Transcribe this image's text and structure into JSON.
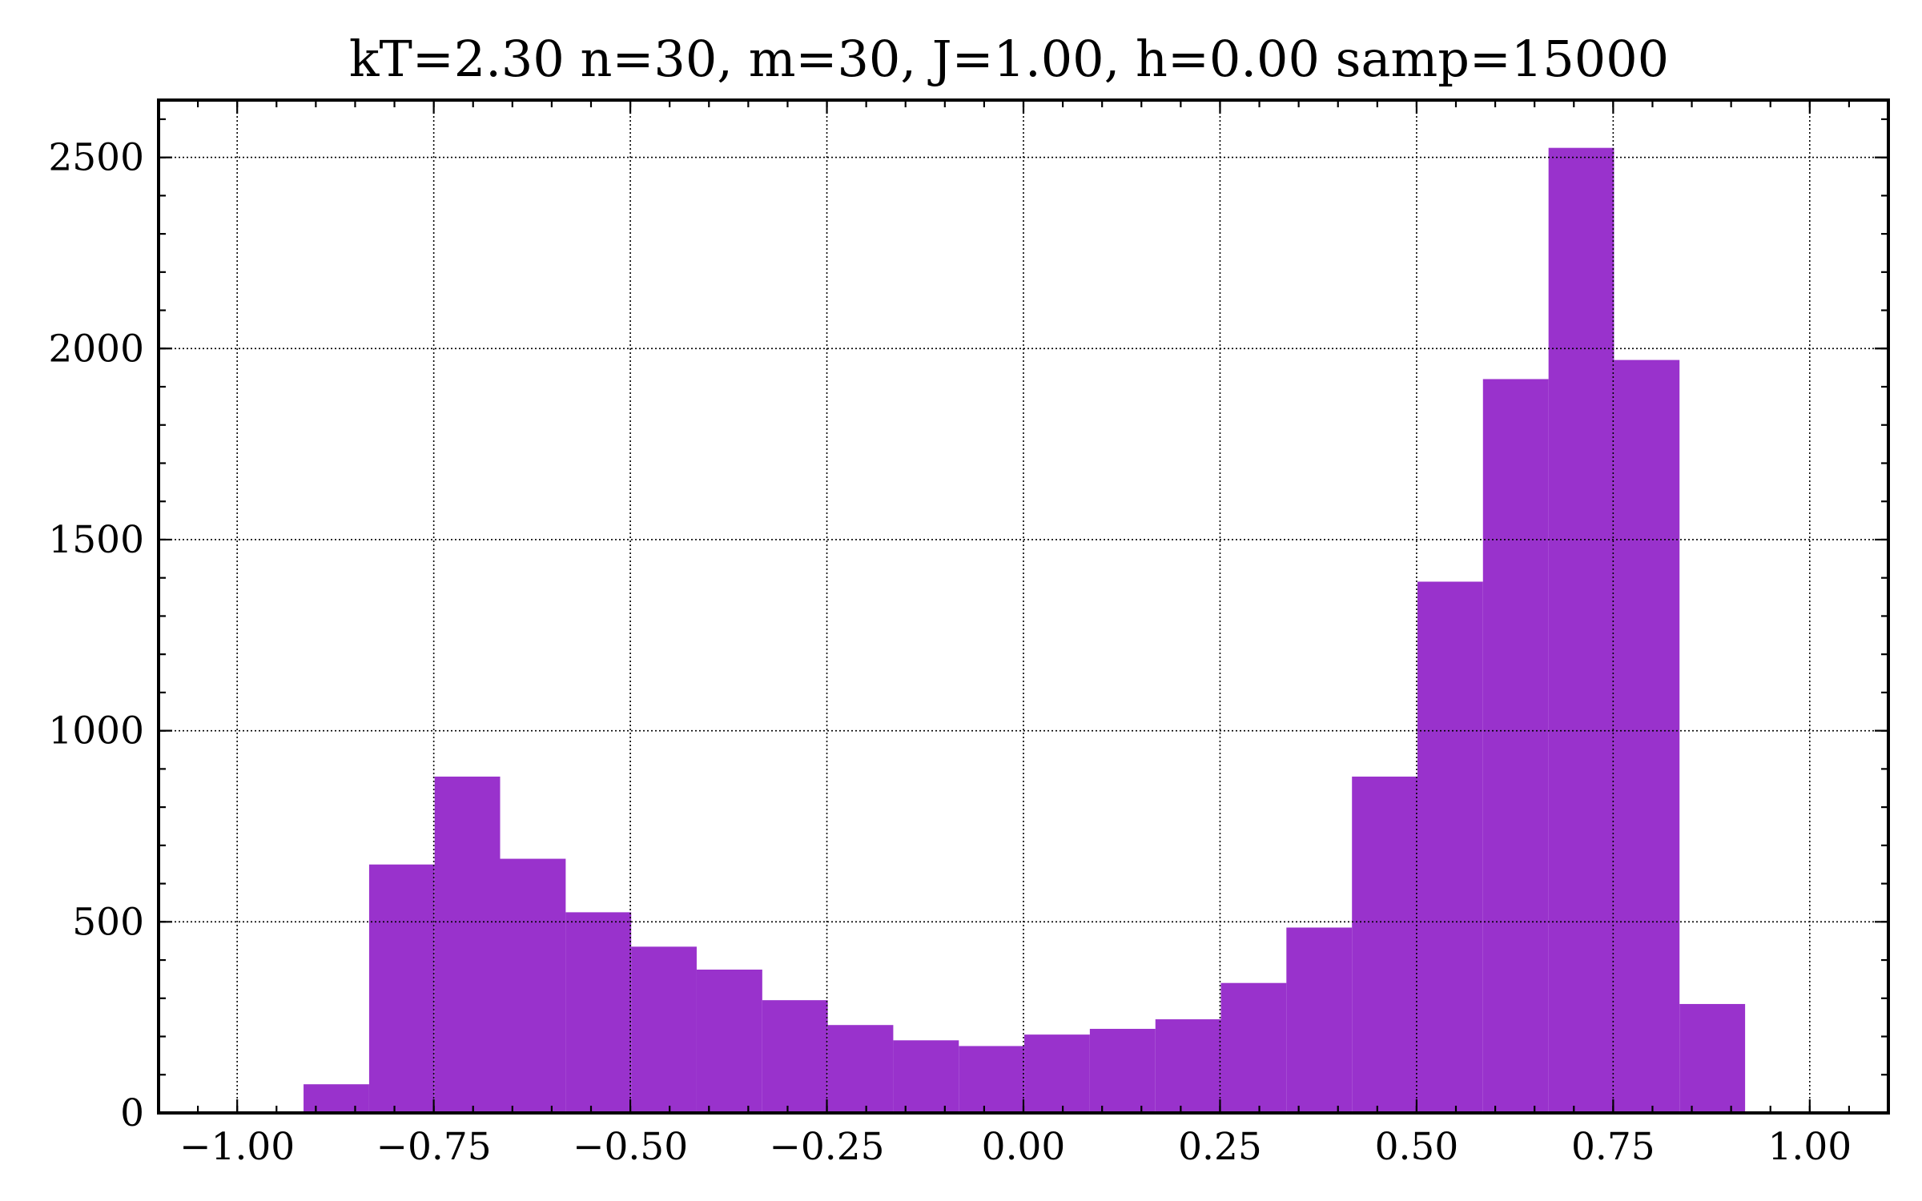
{
  "chart_data": {
    "type": "bar",
    "title": "kT=2.30 n=30, m=30, J=1.00, h=0.00 samp=15000",
    "xlabel": "",
    "ylabel": "",
    "xlim": [
      -1.1,
      1.1
    ],
    "ylim": [
      0,
      2650
    ],
    "grid": true,
    "bar_color": "#9932CC",
    "x_ticks": [
      -1.0,
      -0.75,
      -0.5,
      -0.25,
      0.0,
      0.25,
      0.5,
      0.75,
      1.0
    ],
    "x_tick_labels": [
      "−1.00",
      "−0.75",
      "−0.50",
      "−0.25",
      "0.00",
      "0.25",
      "0.50",
      "0.75",
      "1.00"
    ],
    "y_ticks": [
      0,
      500,
      1000,
      1500,
      2000,
      2500
    ],
    "y_tick_labels": [
      "0",
      "500",
      "1000",
      "1500",
      "2000",
      "2500"
    ],
    "bin_edges": [
      -0.9156,
      -0.8322,
      -0.7489,
      -0.6656,
      -0.5822,
      -0.4989,
      -0.4156,
      -0.3322,
      -0.2489,
      -0.1656,
      -0.0822,
      0.0011,
      0.0844,
      0.1678,
      0.2511,
      0.3344,
      0.4178,
      0.5011,
      0.5844,
      0.6678,
      0.7511,
      0.8344,
      0.9178
    ],
    "values": [
      75,
      650,
      880,
      665,
      525,
      435,
      375,
      295,
      230,
      190,
      175,
      205,
      220,
      245,
      340,
      485,
      880,
      1390,
      1920,
      2525,
      1970,
      285
    ]
  }
}
